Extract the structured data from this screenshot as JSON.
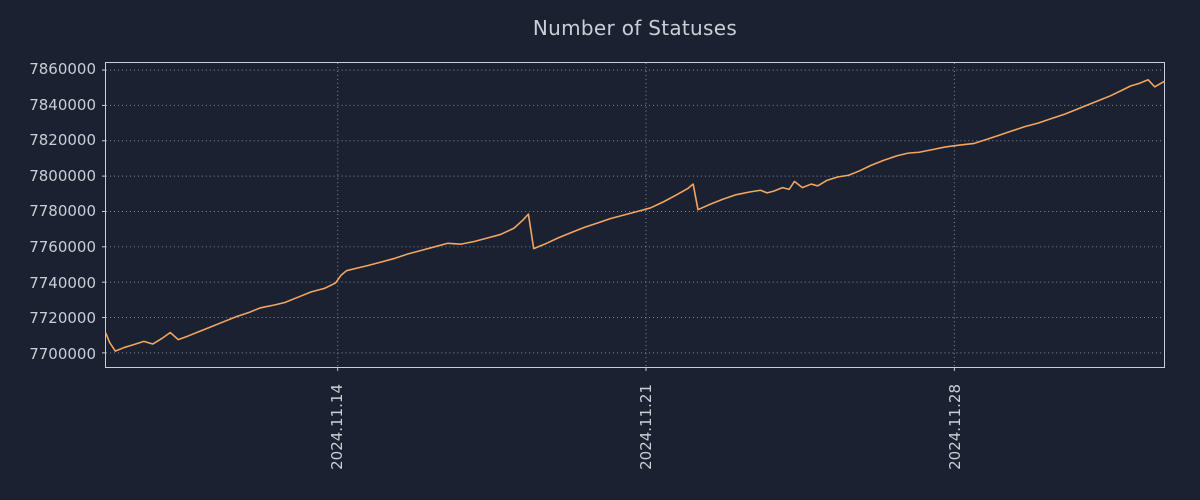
{
  "title": "Number of Statuses",
  "colors": {
    "background": "#1a2130",
    "text": "#c9cfd6",
    "spine": "#c9cfd6",
    "grid": "#868d98",
    "line": "#f4a460"
  },
  "chart_data": {
    "type": "line",
    "title": "Number of Statuses",
    "xlabel": "",
    "ylabel": "",
    "x_unit": "day-of-month index, Nov 2024 (values > 30 are Dec 2024)",
    "xlim": [
      8.74,
      32.76
    ],
    "ylim": [
      7692000,
      7864000
    ],
    "grid": "dotted",
    "legend": "none",
    "x_ticks": [
      {
        "pos": 14,
        "label": "2024.11.14"
      },
      {
        "pos": 21,
        "label": "2024.11.21"
      },
      {
        "pos": 28,
        "label": "2024.11.28"
      }
    ],
    "y_ticks": [
      7700000,
      7720000,
      7740000,
      7760000,
      7780000,
      7800000,
      7820000,
      7840000,
      7860000
    ],
    "series": [
      {
        "name": "statuses",
        "points": [
          [
            8.74,
            7711000
          ],
          [
            8.82,
            7706000
          ],
          [
            8.95,
            7701000
          ],
          [
            9.15,
            7703000
          ],
          [
            9.35,
            7704500
          ],
          [
            9.6,
            7706500
          ],
          [
            9.8,
            7705000
          ],
          [
            10.0,
            7708000
          ],
          [
            10.2,
            7711500
          ],
          [
            10.38,
            7707500
          ],
          [
            10.6,
            7709500
          ],
          [
            10.85,
            7712000
          ],
          [
            11.1,
            7714500
          ],
          [
            11.4,
            7717500
          ],
          [
            11.7,
            7720500
          ],
          [
            12.0,
            7723000
          ],
          [
            12.25,
            7725500
          ],
          [
            12.55,
            7727000
          ],
          [
            12.8,
            7728500
          ],
          [
            13.1,
            7731500
          ],
          [
            13.4,
            7734500
          ],
          [
            13.7,
            7736500
          ],
          [
            13.95,
            7739500
          ],
          [
            14.08,
            7744000
          ],
          [
            14.2,
            7746500
          ],
          [
            14.45,
            7748000
          ],
          [
            14.7,
            7749500
          ],
          [
            15.0,
            7751500
          ],
          [
            15.3,
            7753500
          ],
          [
            15.6,
            7756000
          ],
          [
            15.9,
            7758000
          ],
          [
            16.2,
            7760000
          ],
          [
            16.5,
            7762000
          ],
          [
            16.8,
            7761500
          ],
          [
            17.1,
            7763000
          ],
          [
            17.4,
            7765000
          ],
          [
            17.7,
            7767000
          ],
          [
            18.0,
            7770500
          ],
          [
            18.2,
            7775000
          ],
          [
            18.33,
            7778500
          ],
          [
            18.45,
            7759000
          ],
          [
            18.7,
            7761500
          ],
          [
            19.0,
            7765000
          ],
          [
            19.3,
            7768000
          ],
          [
            19.6,
            7771000
          ],
          [
            19.9,
            7773500
          ],
          [
            20.2,
            7776000
          ],
          [
            20.5,
            7778000
          ],
          [
            20.8,
            7780000
          ],
          [
            21.1,
            7782000
          ],
          [
            21.4,
            7785500
          ],
          [
            21.7,
            7789500
          ],
          [
            21.95,
            7793000
          ],
          [
            22.07,
            7795500
          ],
          [
            22.18,
            7781000
          ],
          [
            22.45,
            7784000
          ],
          [
            22.75,
            7787000
          ],
          [
            23.05,
            7789500
          ],
          [
            23.35,
            7791000
          ],
          [
            23.6,
            7792000
          ],
          [
            23.75,
            7790500
          ],
          [
            23.9,
            7791500
          ],
          [
            24.1,
            7793500
          ],
          [
            24.25,
            7792500
          ],
          [
            24.37,
            7797000
          ],
          [
            24.55,
            7793500
          ],
          [
            24.75,
            7795500
          ],
          [
            24.9,
            7794500
          ],
          [
            25.1,
            7797500
          ],
          [
            25.35,
            7799500
          ],
          [
            25.6,
            7800500
          ],
          [
            25.85,
            7803000
          ],
          [
            26.1,
            7806000
          ],
          [
            26.4,
            7809000
          ],
          [
            26.7,
            7811500
          ],
          [
            26.95,
            7813000
          ],
          [
            27.2,
            7813500
          ],
          [
            27.5,
            7815000
          ],
          [
            27.8,
            7816500
          ],
          [
            28.1,
            7817500
          ],
          [
            28.45,
            7818500
          ],
          [
            28.7,
            7820500
          ],
          [
            29.0,
            7823000
          ],
          [
            29.3,
            7825500
          ],
          [
            29.6,
            7828000
          ],
          [
            29.9,
            7830000
          ],
          [
            30.2,
            7832500
          ],
          [
            30.5,
            7835000
          ],
          [
            30.8,
            7838000
          ],
          [
            31.05,
            7840500
          ],
          [
            31.3,
            7843000
          ],
          [
            31.55,
            7845500
          ],
          [
            31.8,
            7848500
          ],
          [
            32.0,
            7851000
          ],
          [
            32.2,
            7852500
          ],
          [
            32.4,
            7854500
          ],
          [
            32.55,
            7850500
          ],
          [
            32.76,
            7853500
          ]
        ]
      }
    ]
  }
}
